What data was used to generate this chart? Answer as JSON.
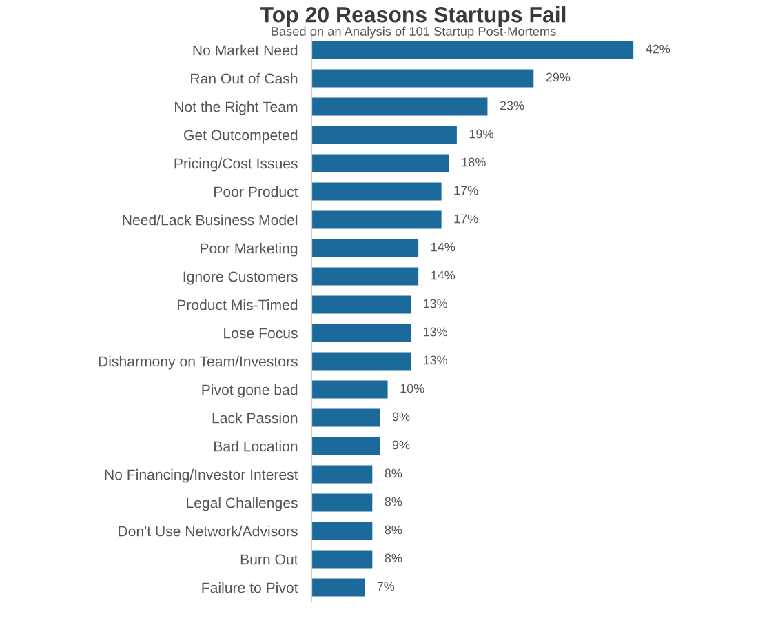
{
  "chart_data": {
    "type": "bar",
    "orientation": "horizontal",
    "title": "Top 20 Reasons Startups Fail",
    "subtitle": "Based on an Analysis of 101 Startup Post-Mortems",
    "categories": [
      "No Market Need",
      "Ran Out of Cash",
      "Not the Right Team",
      "Get Outcompeted",
      "Pricing/Cost Issues",
      "Poor Product",
      "Need/Lack Business Model",
      "Poor Marketing",
      "Ignore Customers",
      "Product Mis-Timed",
      "Lose Focus",
      "Disharmony on Team/Investors",
      "Pivot gone bad",
      "Lack Passion",
      "Bad Location",
      "No Financing/Investor Interest",
      "Legal Challenges",
      "Don't Use Network/Advisors",
      "Burn Out",
      "Failure to Pivot"
    ],
    "values": [
      42,
      29,
      23,
      19,
      18,
      17,
      17,
      14,
      14,
      13,
      13,
      13,
      10,
      9,
      9,
      8,
      8,
      8,
      8,
      7
    ],
    "value_labels": [
      "42%",
      "29%",
      "23%",
      "19%",
      "18%",
      "17%",
      "17%",
      "14%",
      "14%",
      "13%",
      "13%",
      "13%",
      "10%",
      "9%",
      "9%",
      "8%",
      "8%",
      "8%",
      "8%",
      "7%"
    ],
    "color": "#1b6a9b"
  }
}
